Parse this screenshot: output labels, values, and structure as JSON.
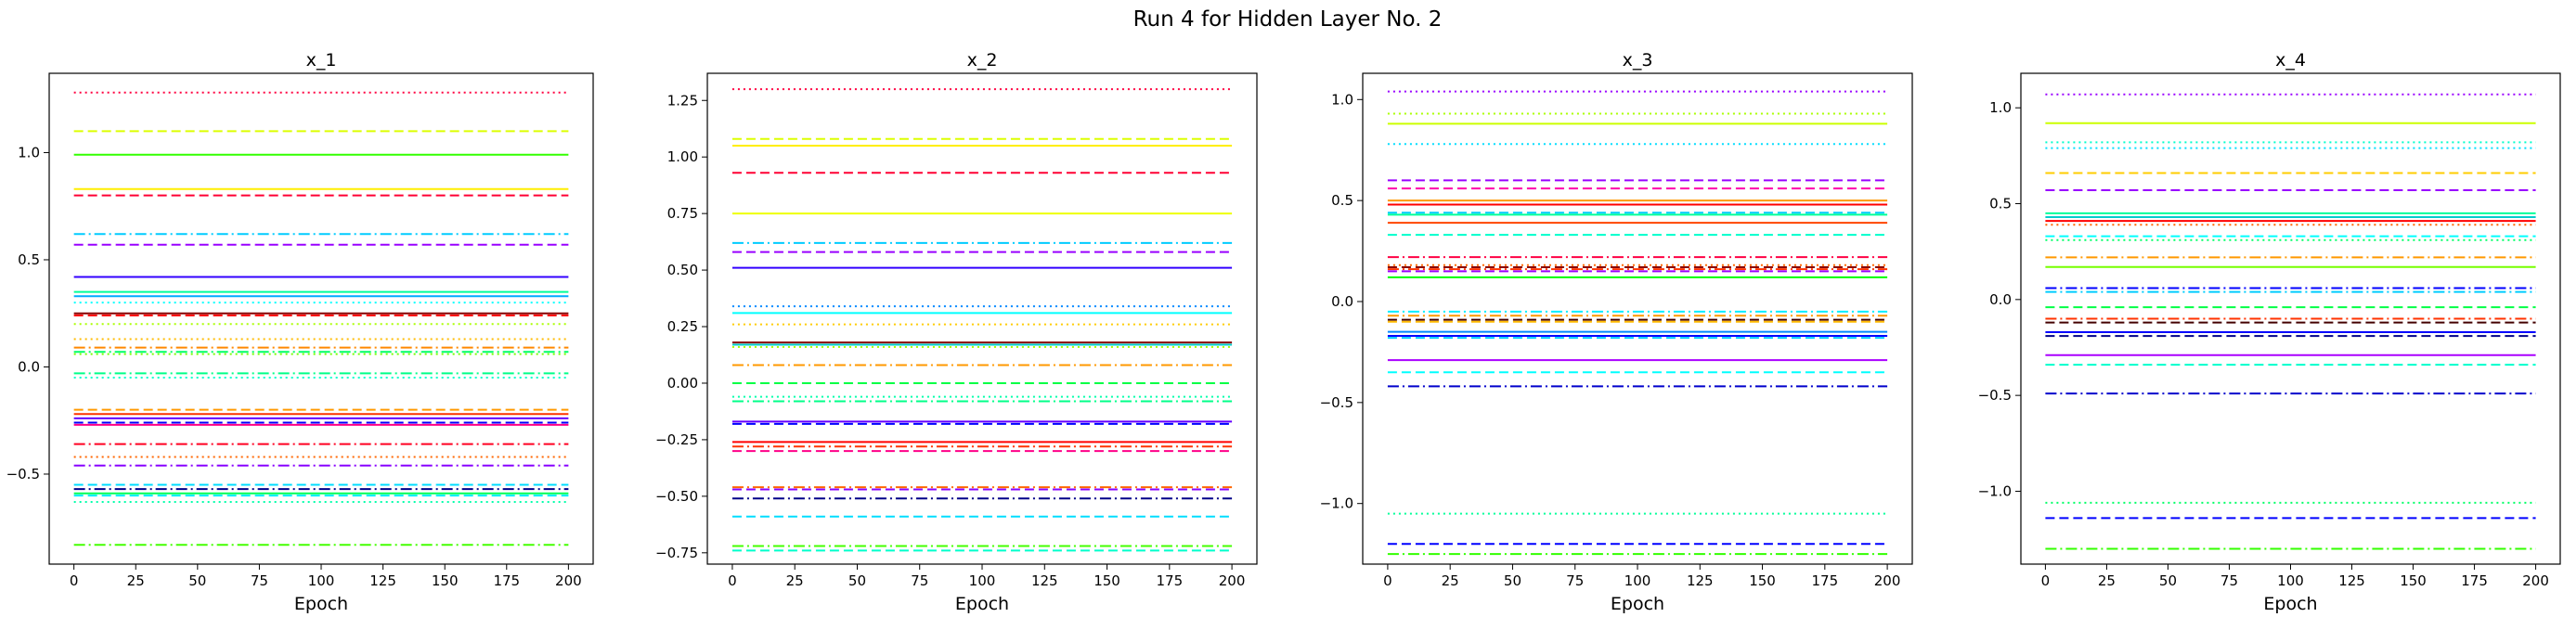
{
  "figure": {
    "title": "Run 4 for Hidden Layer No. 2"
  },
  "chart_data": [
    {
      "type": "line",
      "title": "x_1",
      "xlabel": "Epoch",
      "ylabel": "",
      "xlim": [
        -10,
        210
      ],
      "ylim": [
        -0.92,
        1.37
      ],
      "xticks": [
        0,
        25,
        50,
        75,
        100,
        125,
        150,
        175,
        200
      ],
      "yticks": [
        -0.5,
        0.0,
        0.5,
        1.0
      ],
      "ytick_labels": [
        "−0.5",
        "0.0",
        "0.5",
        "1.0"
      ],
      "grid": false,
      "x": [
        0,
        200
      ],
      "series": [
        {
          "value": 1.28,
          "color": "#ff0040",
          "style": "dotted"
        },
        {
          "value": 1.1,
          "color": "#ddff00",
          "style": "dashed"
        },
        {
          "value": 0.99,
          "color": "#33ff00",
          "style": "solid"
        },
        {
          "value": 0.83,
          "color": "#ffee00",
          "style": "solid"
        },
        {
          "value": 0.8,
          "color": "#ff0033",
          "style": "dashed"
        },
        {
          "value": 0.62,
          "color": "#00ccff",
          "style": "dashdot"
        },
        {
          "value": 0.57,
          "color": "#9900ff",
          "style": "dashed"
        },
        {
          "value": 0.42,
          "color": "#3300ff",
          "style": "solid"
        },
        {
          "value": 0.35,
          "color": "#00ff99",
          "style": "solid"
        },
        {
          "value": 0.33,
          "color": "#00aaff",
          "style": "solid"
        },
        {
          "value": 0.3,
          "color": "#00ffff",
          "style": "dotted"
        },
        {
          "value": 0.25,
          "color": "#880000",
          "style": "solid"
        },
        {
          "value": 0.24,
          "color": "#ff0000",
          "style": "dashed"
        },
        {
          "value": 0.2,
          "color": "#aaff00",
          "style": "dotted"
        },
        {
          "value": 0.13,
          "color": "#ffbb00",
          "style": "dotted"
        },
        {
          "value": 0.09,
          "color": "#ff8800",
          "style": "dashdot"
        },
        {
          "value": 0.07,
          "color": "#00ff66",
          "style": "dashdot"
        },
        {
          "value": 0.06,
          "color": "#77ff00",
          "style": "dotted"
        },
        {
          "value": -0.03,
          "color": "#00ff88",
          "style": "dashdot"
        },
        {
          "value": -0.05,
          "color": "#00ffcc",
          "style": "dotted"
        },
        {
          "value": -0.2,
          "color": "#ff9900",
          "style": "dashed"
        },
        {
          "value": -0.22,
          "color": "#ff3300",
          "style": "solid"
        },
        {
          "value": -0.24,
          "color": "#6600ff",
          "style": "solid"
        },
        {
          "value": -0.26,
          "color": "#0000ff",
          "style": "dashed"
        },
        {
          "value": -0.27,
          "color": "#ff0088",
          "style": "solid"
        },
        {
          "value": -0.36,
          "color": "#ff0022",
          "style": "dashdot"
        },
        {
          "value": -0.42,
          "color": "#ff6600",
          "style": "dotted"
        },
        {
          "value": -0.46,
          "color": "#8800ff",
          "style": "dashdot"
        },
        {
          "value": -0.55,
          "color": "#00ddff",
          "style": "dashed"
        },
        {
          "value": -0.57,
          "color": "#000088",
          "style": "dashdot"
        },
        {
          "value": -0.59,
          "color": "#00ff55",
          "style": "solid"
        },
        {
          "value": -0.6,
          "color": "#00eeff",
          "style": "dashed"
        },
        {
          "value": -0.63,
          "color": "#00ffaa",
          "style": "dotted"
        },
        {
          "value": -0.83,
          "color": "#44ff00",
          "style": "dashdot"
        }
      ]
    },
    {
      "type": "line",
      "title": "x_2",
      "xlabel": "Epoch",
      "ylabel": "",
      "xlim": [
        -10,
        210
      ],
      "ylim": [
        -0.8,
        1.37
      ],
      "xticks": [
        0,
        25,
        50,
        75,
        100,
        125,
        150,
        175,
        200
      ],
      "yticks": [
        -0.75,
        -0.5,
        -0.25,
        0.0,
        0.25,
        0.5,
        0.75,
        1.0,
        1.25
      ],
      "ytick_labels": [
        "−0.75",
        "−0.50",
        "−0.25",
        "0.00",
        "0.25",
        "0.50",
        "0.75",
        "1.00",
        "1.25"
      ],
      "grid": false,
      "x": [
        0,
        200
      ],
      "series": [
        {
          "value": 1.3,
          "color": "#ff0040",
          "style": "dotted"
        },
        {
          "value": 1.08,
          "color": "#ddff00",
          "style": "dashed"
        },
        {
          "value": 1.05,
          "color": "#ffee00",
          "style": "solid"
        },
        {
          "value": 0.93,
          "color": "#ff0033",
          "style": "dashed"
        },
        {
          "value": 0.75,
          "color": "#eeff00",
          "style": "solid"
        },
        {
          "value": 0.62,
          "color": "#00ccff",
          "style": "dashdot"
        },
        {
          "value": 0.58,
          "color": "#9900ff",
          "style": "dashed"
        },
        {
          "value": 0.51,
          "color": "#3300ff",
          "style": "solid"
        },
        {
          "value": 0.34,
          "color": "#0088ff",
          "style": "dotted"
        },
        {
          "value": 0.31,
          "color": "#00ffff",
          "style": "solid"
        },
        {
          "value": 0.26,
          "color": "#ffcc00",
          "style": "dotted"
        },
        {
          "value": 0.18,
          "color": "#880000",
          "style": "solid"
        },
        {
          "value": 0.17,
          "color": "#00cccc",
          "style": "solid"
        },
        {
          "value": 0.16,
          "color": "#aaff00",
          "style": "dotted"
        },
        {
          "value": 0.08,
          "color": "#ff9900",
          "style": "dashdot"
        },
        {
          "value": 0.0,
          "color": "#00ff44",
          "style": "dashed"
        },
        {
          "value": -0.06,
          "color": "#00ffaa",
          "style": "dotted"
        },
        {
          "value": -0.08,
          "color": "#00ff88",
          "style": "dashdot"
        },
        {
          "value": -0.17,
          "color": "#6600ff",
          "style": "solid"
        },
        {
          "value": -0.18,
          "color": "#0000ff",
          "style": "dashed"
        },
        {
          "value": -0.26,
          "color": "#ff0000",
          "style": "solid"
        },
        {
          "value": -0.28,
          "color": "#ff3300",
          "style": "dashdot"
        },
        {
          "value": -0.3,
          "color": "#ff0088",
          "style": "dashed"
        },
        {
          "value": -0.46,
          "color": "#ff6600",
          "style": "dashdot"
        },
        {
          "value": -0.47,
          "color": "#8800ff",
          "style": "dashed"
        },
        {
          "value": -0.51,
          "color": "#000088",
          "style": "dashdot"
        },
        {
          "value": -0.59,
          "color": "#00ddff",
          "style": "dashed"
        },
        {
          "value": -0.72,
          "color": "#44ff00",
          "style": "dashdot"
        },
        {
          "value": -0.74,
          "color": "#00ffcc",
          "style": "dashed"
        }
      ]
    },
    {
      "type": "line",
      "title": "x_3",
      "xlabel": "Epoch",
      "ylabel": "",
      "xlim": [
        -10,
        210
      ],
      "ylim": [
        -1.3,
        1.13
      ],
      "xticks": [
        0,
        25,
        50,
        75,
        100,
        125,
        150,
        175,
        200
      ],
      "yticks": [
        -1.0,
        -0.5,
        0.0,
        0.5,
        1.0
      ],
      "ytick_labels": [
        "−1.0",
        "−0.5",
        "0.0",
        "0.5",
        "1.0"
      ],
      "grid": false,
      "x": [
        0,
        200
      ],
      "series": [
        {
          "value": 1.04,
          "color": "#9900ff",
          "style": "dotted"
        },
        {
          "value": 0.93,
          "color": "#aaff00",
          "style": "dotted"
        },
        {
          "value": 0.88,
          "color": "#ccff00",
          "style": "solid"
        },
        {
          "value": 0.78,
          "color": "#00ddff",
          "style": "dotted"
        },
        {
          "value": 0.6,
          "color": "#9900ff",
          "style": "dashed"
        },
        {
          "value": 0.56,
          "color": "#ff00aa",
          "style": "dashed"
        },
        {
          "value": 0.5,
          "color": "#ff9900",
          "style": "solid"
        },
        {
          "value": 0.48,
          "color": "#ff0000",
          "style": "solid"
        },
        {
          "value": 0.44,
          "color": "#00ccff",
          "style": "dashed"
        },
        {
          "value": 0.43,
          "color": "#00ff99",
          "style": "solid"
        },
        {
          "value": 0.39,
          "color": "#ff4400",
          "style": "solid"
        },
        {
          "value": 0.33,
          "color": "#00ffcc",
          "style": "dashed"
        },
        {
          "value": 0.22,
          "color": "#ff0044",
          "style": "dashdot"
        },
        {
          "value": 0.18,
          "color": "#ff6600",
          "style": "dotted"
        },
        {
          "value": 0.17,
          "color": "#880000",
          "style": "dashed"
        },
        {
          "value": 0.16,
          "color": "#ff3300",
          "style": "dashdot"
        },
        {
          "value": 0.15,
          "color": "#9900ff",
          "style": "dashed"
        },
        {
          "value": 0.12,
          "color": "#00ff00",
          "style": "solid"
        },
        {
          "value": -0.05,
          "color": "#00eeff",
          "style": "dashdot"
        },
        {
          "value": -0.07,
          "color": "#ff9900",
          "style": "dashdot"
        },
        {
          "value": -0.09,
          "color": "#440000",
          "style": "dashed"
        },
        {
          "value": -0.1,
          "color": "#ffbb00",
          "style": "dashed"
        },
        {
          "value": -0.15,
          "color": "#0088ff",
          "style": "solid"
        },
        {
          "value": -0.17,
          "color": "#0000ff",
          "style": "solid"
        },
        {
          "value": -0.18,
          "color": "#00ccff",
          "style": "dashed"
        },
        {
          "value": -0.29,
          "color": "#aa00ff",
          "style": "solid"
        },
        {
          "value": -0.35,
          "color": "#00ffff",
          "style": "dashed"
        },
        {
          "value": -0.42,
          "color": "#0000cc",
          "style": "dashdot"
        },
        {
          "value": -1.05,
          "color": "#00ff99",
          "style": "dotted"
        },
        {
          "value": -1.2,
          "color": "#0000ff",
          "style": "dashed"
        },
        {
          "value": -1.25,
          "color": "#33ff00",
          "style": "dashdot"
        }
      ]
    },
    {
      "type": "line",
      "title": "x_4",
      "xlabel": "Epoch",
      "ylabel": "",
      "xlim": [
        -10,
        210
      ],
      "ylim": [
        -1.38,
        1.18
      ],
      "xticks": [
        0,
        25,
        50,
        75,
        100,
        125,
        150,
        175,
        200
      ],
      "yticks": [
        -1.0,
        -0.5,
        0.0,
        0.5,
        1.0
      ],
      "ytick_labels": [
        "−1.0",
        "−0.5",
        "0.0",
        "0.5",
        "1.0"
      ],
      "grid": false,
      "x": [
        0,
        200
      ],
      "series": [
        {
          "value": 1.07,
          "color": "#9900ff",
          "style": "dotted"
        },
        {
          "value": 0.92,
          "color": "#ccff00",
          "style": "solid"
        },
        {
          "value": 0.82,
          "color": "#00ffcc",
          "style": "dotted"
        },
        {
          "value": 0.79,
          "color": "#00ddff",
          "style": "dotted"
        },
        {
          "value": 0.66,
          "color": "#ffcc00",
          "style": "dashed"
        },
        {
          "value": 0.57,
          "color": "#9900ff",
          "style": "dashed"
        },
        {
          "value": 0.45,
          "color": "#00ff99",
          "style": "solid"
        },
        {
          "value": 0.43,
          "color": "#00cccc",
          "style": "solid"
        },
        {
          "value": 0.41,
          "color": "#ff0000",
          "style": "solid"
        },
        {
          "value": 0.39,
          "color": "#ff6600",
          "style": "dotted"
        },
        {
          "value": 0.33,
          "color": "#00ffff",
          "style": "dashed"
        },
        {
          "value": 0.31,
          "color": "#00ff66",
          "style": "dotted"
        },
        {
          "value": 0.22,
          "color": "#ff9900",
          "style": "dashdot"
        },
        {
          "value": 0.17,
          "color": "#77ff00",
          "style": "solid"
        },
        {
          "value": 0.06,
          "color": "#0000ff",
          "style": "dashdot"
        },
        {
          "value": 0.04,
          "color": "#00ccff",
          "style": "dashdot"
        },
        {
          "value": -0.04,
          "color": "#00ff44",
          "style": "dashed"
        },
        {
          "value": -0.1,
          "color": "#ff3300",
          "style": "dashdot"
        },
        {
          "value": -0.12,
          "color": "#440000",
          "style": "dashed"
        },
        {
          "value": -0.17,
          "color": "#0000ff",
          "style": "solid"
        },
        {
          "value": -0.19,
          "color": "#000088",
          "style": "dashed"
        },
        {
          "value": -0.29,
          "color": "#aa00ff",
          "style": "solid"
        },
        {
          "value": -0.34,
          "color": "#00ffcc",
          "style": "dashed"
        },
        {
          "value": -0.49,
          "color": "#0000cc",
          "style": "dashdot"
        },
        {
          "value": -1.06,
          "color": "#00ff66",
          "style": "dotted"
        },
        {
          "value": -1.14,
          "color": "#0000ff",
          "style": "dashed"
        },
        {
          "value": -1.3,
          "color": "#33ff00",
          "style": "dashdot"
        }
      ]
    }
  ]
}
